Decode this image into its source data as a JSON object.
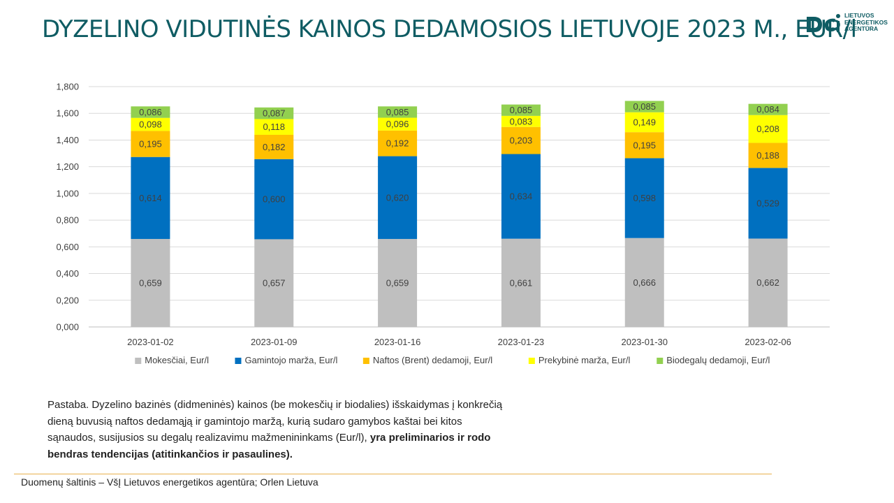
{
  "title": "DYZELINO VIDUTINĖS KAINOS DEDAMOSIOS LIETUVOJE 2023 M., EUR/l",
  "logo": {
    "lines": [
      "LIETUVOS",
      "ENERGETIKOS",
      "AGENTŪRA"
    ],
    "color": "#0f5c63",
    "icon": "lea-logo-icon"
  },
  "chart_data": {
    "type": "bar",
    "stacked": true,
    "categories": [
      "2023-01-02",
      "2023-01-09",
      "2023-01-16",
      "2023-01-23",
      "2023-01-30",
      "2023-02-06"
    ],
    "series": [
      {
        "name": "Mokesčiai, Eur/l",
        "color": "#bfbfbf",
        "values": [
          0.659,
          0.657,
          0.659,
          0.661,
          0.666,
          0.662
        ],
        "labels": [
          "0,659",
          "0,657",
          "0,659",
          "0,661",
          "0,666",
          "0,662"
        ]
      },
      {
        "name": "Gamintojo marža, Eur/l",
        "color": "#0070c0",
        "values": [
          0.614,
          0.6,
          0.62,
          0.634,
          0.598,
          0.529
        ],
        "labels": [
          "0,614",
          "0,600",
          "0,620",
          "0,634",
          "0,598",
          "0,529"
        ]
      },
      {
        "name": "Naftos (Brent) dedamoji, Eur/l",
        "color": "#ffc000",
        "values": [
          0.195,
          0.182,
          0.192,
          0.203,
          0.195,
          0.188
        ],
        "labels": [
          "0,195",
          "0,182",
          "0,192",
          "0,203",
          "0,195",
          "0,188"
        ]
      },
      {
        "name": "Prekybinė marža, Eur/l",
        "color": "#ffff00",
        "values": [
          0.098,
          0.118,
          0.096,
          0.083,
          0.149,
          0.208
        ],
        "labels": [
          "0,098",
          "0,118",
          "0,096",
          "0,083",
          "0,149",
          "0,208"
        ]
      },
      {
        "name": "Biodegalų dedamoji, Eur/l",
        "color": "#92d050",
        "values": [
          0.086,
          0.087,
          0.085,
          0.085,
          0.085,
          0.084
        ],
        "labels": [
          "0,086",
          "0,087",
          "0,085",
          "0,085",
          "0,085",
          "0,084"
        ]
      }
    ],
    "ylim": [
      0,
      1.8
    ],
    "yticks": [
      0,
      0.2,
      0.4,
      0.6,
      0.8,
      1.0,
      1.2,
      1.4,
      1.6,
      1.8
    ],
    "ytick_labels": [
      "0,000",
      "0,200",
      "0,400",
      "0,600",
      "0,800",
      "1,000",
      "1,200",
      "1,400",
      "1,600",
      "1,800"
    ],
    "grid": true,
    "legend": "bottom"
  },
  "note": {
    "plain": "Pastaba. Dyzelino bazinės (didmeninės) kainos (be mokesčių ir biodalies) išskaidymas į konkrečią dieną buvusią naftos dedamąją ir gamintojo maržą, kurią sudaro gamybos kaštai bei kitos sąnaudos, susijusios su degalų realizavimu mažmenininkams (Eur/l), ",
    "bold": "yra preliminarios ir rodo bendras tendencijas (atitinkančios ir pasaulines)."
  },
  "source": "Duomenų šaltinis – VšĮ Lietuvos energetikos agentūra; Orlen Lietuva",
  "colors": {
    "title": "#0f5c63",
    "rule": "#e8b04c",
    "grid": "#d9d9d9"
  }
}
